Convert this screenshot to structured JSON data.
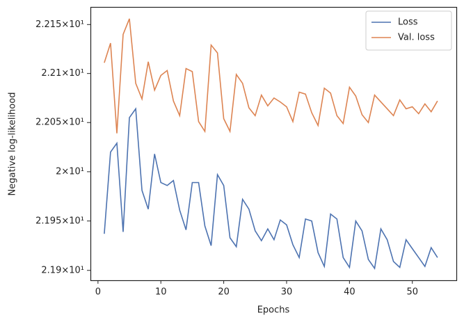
{
  "chart_data": {
    "type": "line",
    "xlabel": "Epochs",
    "ylabel": "Negative log-likelihood",
    "yscale": "log",
    "legend": "upper right",
    "xlim": [
      -1.2,
      57.0
    ],
    "xticks": [
      0,
      10,
      20,
      30,
      40,
      50
    ],
    "ylim": [
      21.89,
      22.168
    ],
    "yticks": [
      {
        "value": 21.9,
        "label": "2.19×10¹"
      },
      {
        "value": 21.95,
        "label": "2.195×10¹"
      },
      {
        "value": 22.0,
        "label": "2×10¹"
      },
      {
        "value": 22.05,
        "label": "2.205×10¹"
      },
      {
        "value": 22.1,
        "label": "2.21×10¹"
      },
      {
        "value": 22.15,
        "label": "2.215×10¹"
      }
    ],
    "x": [
      1,
      2,
      3,
      4,
      5,
      6,
      7,
      8,
      9,
      10,
      11,
      12,
      13,
      14,
      15,
      16,
      17,
      18,
      19,
      20,
      21,
      22,
      23,
      24,
      25,
      26,
      27,
      28,
      29,
      30,
      31,
      32,
      33,
      34,
      35,
      36,
      37,
      38,
      39,
      40,
      41,
      42,
      43,
      44,
      45,
      46,
      47,
      48,
      49,
      50,
      51,
      52,
      53,
      54
    ],
    "series": [
      {
        "name": "Loss",
        "color": "#4c72b0",
        "values": [
          21.937,
          22.02,
          22.029,
          21.939,
          22.055,
          22.064,
          21.981,
          21.962,
          22.018,
          21.989,
          21.986,
          21.991,
          21.961,
          21.941,
          21.989,
          21.989,
          21.945,
          21.925,
          21.997,
          21.986,
          21.933,
          21.924,
          21.972,
          21.962,
          21.94,
          21.93,
          21.942,
          21.931,
          21.951,
          21.946,
          21.926,
          21.913,
          21.952,
          21.95,
          21.918,
          21.904,
          21.957,
          21.952,
          21.913,
          21.903,
          21.95,
          21.94,
          21.911,
          21.902,
          21.942,
          21.931,
          21.909,
          21.903,
          21.931,
          21.922,
          21.913,
          21.904,
          21.923,
          21.913
        ]
      },
      {
        "name": "Val. loss",
        "color": "#dd8452",
        "values": [
          22.111,
          22.131,
          22.039,
          22.14,
          22.156,
          22.09,
          22.074,
          22.112,
          22.083,
          22.098,
          22.103,
          22.072,
          22.057,
          22.105,
          22.102,
          22.051,
          22.041,
          22.129,
          22.121,
          22.054,
          22.041,
          22.099,
          22.09,
          22.065,
          22.057,
          22.078,
          22.067,
          22.075,
          22.071,
          22.066,
          22.051,
          22.081,
          22.079,
          22.06,
          22.047,
          22.085,
          22.08,
          22.057,
          22.049,
          22.086,
          22.077,
          22.058,
          22.05,
          22.078,
          22.071,
          22.064,
          22.057,
          22.073,
          22.064,
          22.066,
          22.059,
          22.069,
          22.061,
          22.072
        ]
      }
    ]
  }
}
